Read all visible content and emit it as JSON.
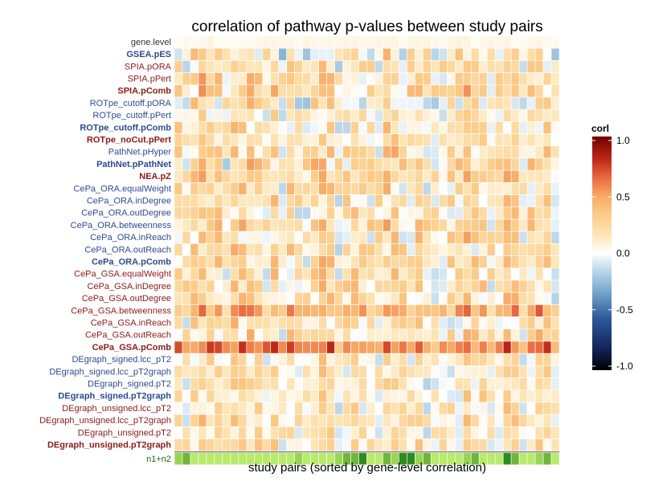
{
  "chart_data": {
    "type": "heatmap",
    "title": "correlation of pathway p-values between study pairs",
    "xlabel": "study pairs (sorted by gene-level correlation)",
    "ylabel": "",
    "n_columns": 48,
    "rows": [
      {
        "label": "gene.level",
        "color": "#333333",
        "bold": false,
        "base": 0.03,
        "amp": 0.05
      },
      {
        "label": "GSEA.pES",
        "color": "#2e4a8f",
        "bold": true,
        "base": 0.08,
        "amp": 0.3
      },
      {
        "label": "SPIA.pORA",
        "color": "#8b1a1a",
        "bold": false,
        "base": 0.12,
        "amp": 0.25
      },
      {
        "label": "SPIA.pPert",
        "color": "#8b1a1a",
        "bold": false,
        "base": 0.18,
        "amp": 0.25
      },
      {
        "label": "SPIA.pComb",
        "color": "#8b1a1a",
        "bold": true,
        "base": 0.18,
        "amp": 0.25
      },
      {
        "label": "ROTpe_cutoff.pORA",
        "color": "#2e4a8f",
        "bold": false,
        "base": 0.1,
        "amp": 0.28
      },
      {
        "label": "ROTpe_cutoff.pPert",
        "color": "#2e4a8f",
        "bold": false,
        "base": 0.1,
        "amp": 0.2
      },
      {
        "label": "ROTpe_cutoff.pComb",
        "color": "#2e4a8f",
        "bold": true,
        "base": 0.1,
        "amp": 0.25
      },
      {
        "label": "ROTpe_noCut.pPert",
        "color": "#8b1a1a",
        "bold": true,
        "base": 0.14,
        "amp": 0.15
      },
      {
        "label": "PathNet.pHyper",
        "color": "#2e4a8f",
        "bold": false,
        "base": 0.15,
        "amp": 0.25
      },
      {
        "label": "PathNet.pPathNet",
        "color": "#2e4a8f",
        "bold": true,
        "base": 0.15,
        "amp": 0.28
      },
      {
        "label": "NEA.pZ",
        "color": "#8b1a1a",
        "bold": true,
        "base": 0.22,
        "amp": 0.2
      },
      {
        "label": "CePa_ORA.equalWeight",
        "color": "#2e4a8f",
        "bold": false,
        "base": 0.16,
        "amp": 0.25
      },
      {
        "label": "CePa_ORA.inDegree",
        "color": "#2e4a8f",
        "bold": false,
        "base": 0.16,
        "amp": 0.25
      },
      {
        "label": "CePa_ORA.outDegree",
        "color": "#2e4a8f",
        "bold": false,
        "base": 0.16,
        "amp": 0.25
      },
      {
        "label": "CePa_ORA.betweenness",
        "color": "#2e4a8f",
        "bold": false,
        "base": 0.2,
        "amp": 0.25
      },
      {
        "label": "CePa_ORA.inReach",
        "color": "#2e4a8f",
        "bold": false,
        "base": 0.15,
        "amp": 0.25
      },
      {
        "label": "CePa_ORA.outReach",
        "color": "#2e4a8f",
        "bold": false,
        "base": 0.15,
        "amp": 0.25
      },
      {
        "label": "CePa_ORA.pComb",
        "color": "#2e4a8f",
        "bold": true,
        "base": 0.18,
        "amp": 0.25
      },
      {
        "label": "CePa_GSA.equalWeight",
        "color": "#8b1a1a",
        "bold": false,
        "base": 0.15,
        "amp": 0.25
      },
      {
        "label": "CePa_GSA.inDegree",
        "color": "#8b1a1a",
        "bold": false,
        "base": 0.15,
        "amp": 0.25
      },
      {
        "label": "CePa_GSA.outDegree",
        "color": "#8b1a1a",
        "bold": false,
        "base": 0.14,
        "amp": 0.25
      },
      {
        "label": "CePa_GSA.betweenness",
        "color": "#8b1a1a",
        "bold": false,
        "base": 0.42,
        "amp": 0.18
      },
      {
        "label": "CePa_GSA.inReach",
        "color": "#8b1a1a",
        "bold": false,
        "base": 0.13,
        "amp": 0.25
      },
      {
        "label": "CePa_GSA.outReach",
        "color": "#8b1a1a",
        "bold": false,
        "base": 0.17,
        "amp": 0.25
      },
      {
        "label": "CePa_GSA.pComb",
        "color": "#8b1a1a",
        "bold": true,
        "base": 0.55,
        "amp": 0.18
      },
      {
        "label": "DEgraph_signed.lcc_pT2",
        "color": "#2e4a8f",
        "bold": false,
        "base": 0.1,
        "amp": 0.2
      },
      {
        "label": "DEgraph_signed.lcc_pT2graph",
        "color": "#2e4a8f",
        "bold": false,
        "base": 0.1,
        "amp": 0.2
      },
      {
        "label": "DEgraph_signed.pT2",
        "color": "#2e4a8f",
        "bold": false,
        "base": 0.1,
        "amp": 0.2
      },
      {
        "label": "DEgraph_signed.pT2graph",
        "color": "#2e4a8f",
        "bold": true,
        "base": 0.1,
        "amp": 0.2
      },
      {
        "label": "DEgraph_unsigned.lcc_pT2",
        "color": "#8b1a1a",
        "bold": false,
        "base": 0.12,
        "amp": 0.2
      },
      {
        "label": "DEgraph_unsigned.lcc_pT2graph",
        "color": "#8b1a1a",
        "bold": false,
        "base": 0.12,
        "amp": 0.2
      },
      {
        "label": "DEgraph_unsigned.pT2",
        "color": "#8b1a1a",
        "bold": false,
        "base": 0.12,
        "amp": 0.2
      },
      {
        "label": "DEgraph_unsigned.pT2graph",
        "color": "#8b1a1a",
        "bold": true,
        "base": 0.12,
        "amp": 0.2
      }
    ],
    "size_row": {
      "label": "n1+n2",
      "color": "#1e6b1e",
      "levels": [
        2,
        3,
        1,
        1,
        1,
        1,
        1,
        1,
        1,
        1,
        1,
        1,
        1,
        1,
        1,
        2,
        1,
        1,
        1,
        1,
        2,
        3,
        3,
        4,
        1,
        1,
        3,
        2,
        4,
        4,
        2,
        3,
        1,
        1,
        1,
        1,
        2,
        3,
        1,
        1,
        1,
        4,
        3,
        1,
        1,
        2,
        3,
        1
      ],
      "palette": [
        "#b8ea6b",
        "#9ad454",
        "#6fb63b",
        "#2f8a1f",
        "#0f5a0f"
      ]
    },
    "legend": {
      "title": "corl",
      "ticks": [
        "1.0",
        "0.5",
        "0.0",
        "-0.5",
        "-1.0"
      ],
      "range": [
        -1.0,
        1.0
      ],
      "stops": [
        {
          "v": -1.0,
          "c": "#000000"
        },
        {
          "v": -0.8,
          "c": "#15265f"
        },
        {
          "v": -0.55,
          "c": "#2f5b9a"
        },
        {
          "v": -0.3,
          "c": "#7fb0d3"
        },
        {
          "v": -0.1,
          "c": "#cfe3ef"
        },
        {
          "v": 0.0,
          "c": "#ffffff"
        },
        {
          "v": 0.15,
          "c": "#fde6b8"
        },
        {
          "v": 0.35,
          "c": "#fbc985"
        },
        {
          "v": 0.5,
          "c": "#f6a764"
        },
        {
          "v": 0.65,
          "c": "#e8693f"
        },
        {
          "v": 0.8,
          "c": "#c02a17"
        },
        {
          "v": 1.0,
          "c": "#6e0000"
        }
      ]
    }
  }
}
